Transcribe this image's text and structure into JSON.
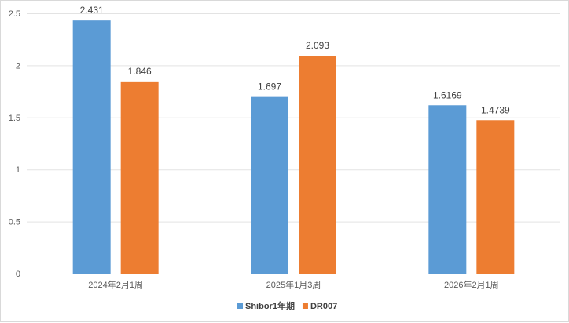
{
  "chart_data": {
    "type": "bar",
    "categories": [
      "2024年2月1周",
      "2025年1月3周",
      "2026年2月1周"
    ],
    "series": [
      {
        "name": "Shibor1年期",
        "values": [
          2.431,
          1.697,
          1.6169
        ],
        "labels": [
          "2.431",
          "1.697",
          "1.6169"
        ],
        "color": "#5b9bd5"
      },
      {
        "name": "DR007",
        "values": [
          1.846,
          2.093,
          1.4739
        ],
        "labels": [
          "1.846",
          "2.093",
          "1.4739"
        ],
        "color": "#ed7d31"
      }
    ],
    "yticks": [
      "0",
      "0.5",
      "1",
      "1.5",
      "2",
      "2.5"
    ],
    "ylim": [
      0,
      2.5
    ],
    "grid": true,
    "legend": "bottom"
  }
}
